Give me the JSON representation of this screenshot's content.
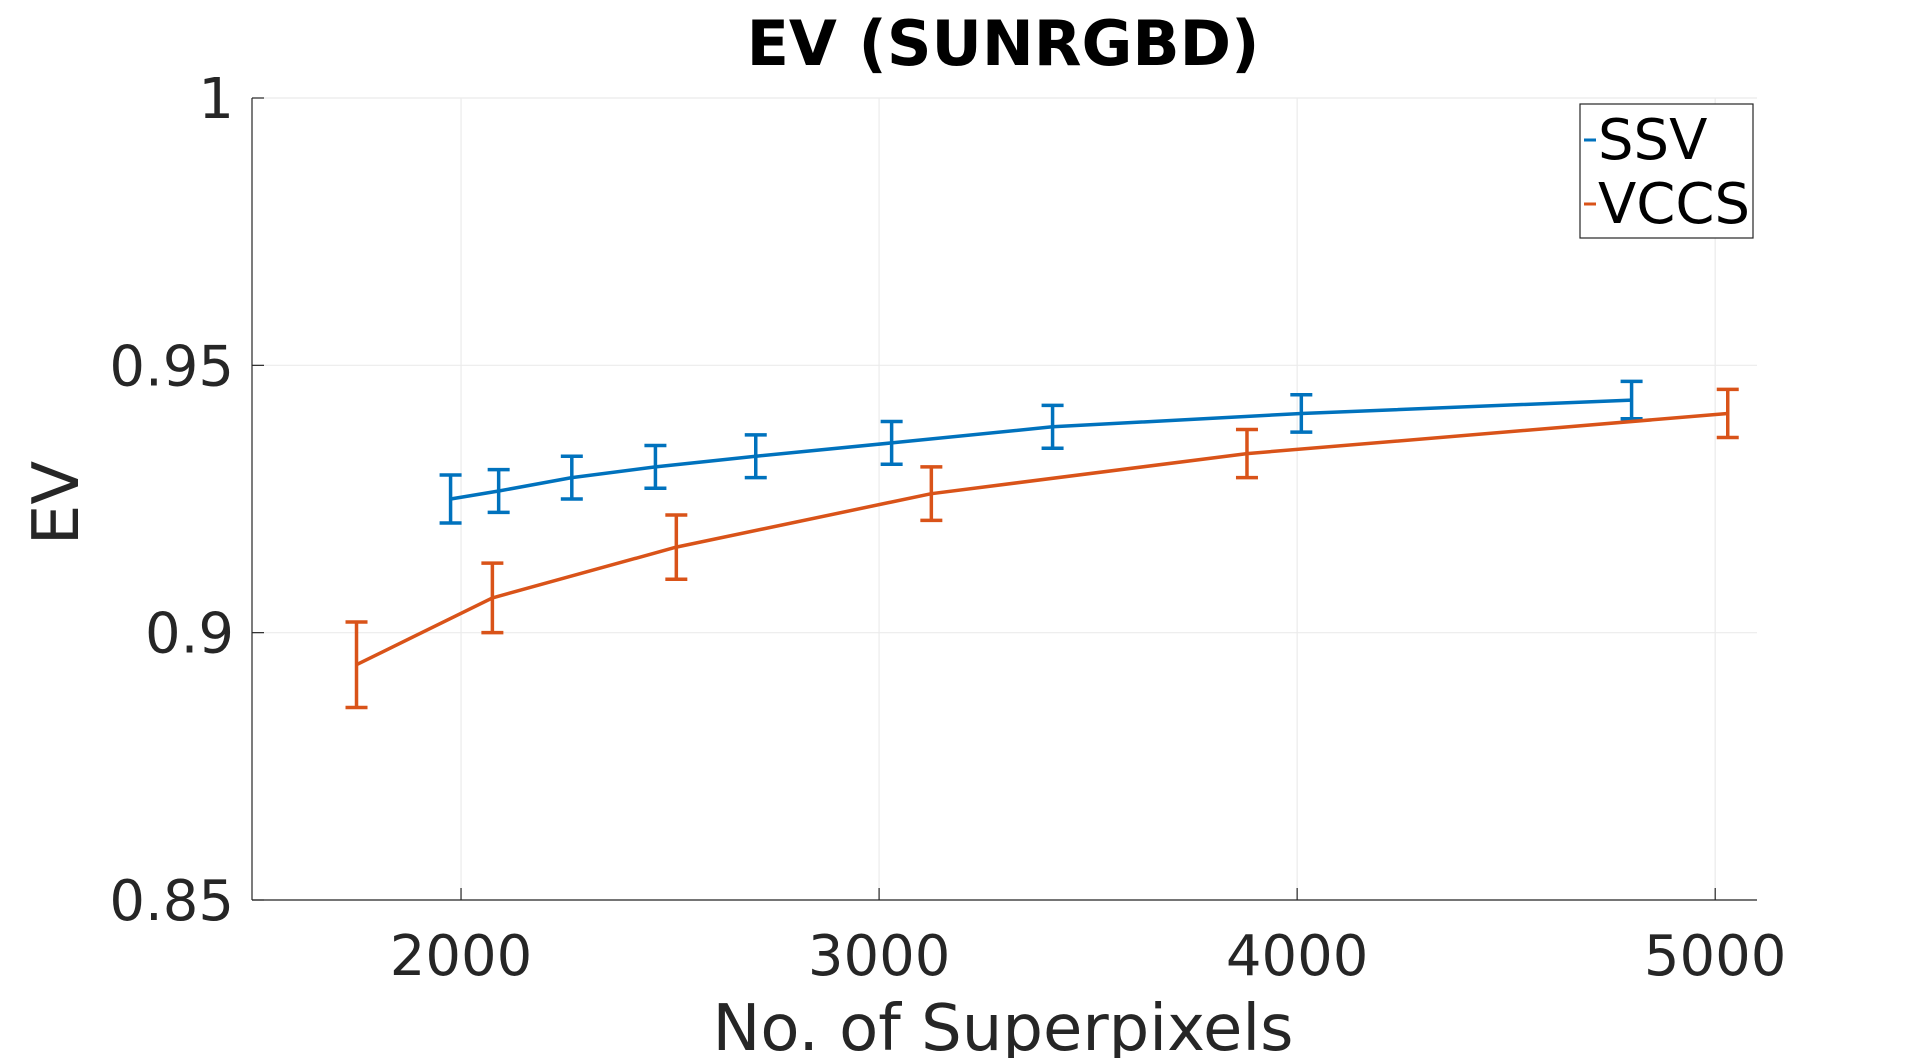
{
  "chart_data": {
    "type": "line",
    "title": "EV (SUNRGBD)",
    "xlabel": "No. of Superpixels",
    "ylabel": "EV",
    "xlim": [
      1500,
      5100
    ],
    "ylim": [
      0.85,
      1.0
    ],
    "xticks": [
      2000,
      3000,
      4000,
      5000
    ],
    "xtick_labels": [
      "2000",
      "3000",
      "4000",
      "5000"
    ],
    "yticks": [
      0.85,
      0.9,
      0.95,
      1.0
    ],
    "ytick_labels": [
      "0.85",
      "0.9",
      "0.95",
      "1"
    ],
    "grid": true,
    "legend_position": "top-right",
    "series": [
      {
        "name": "SSV",
        "color": "#0072bd",
        "x": [
          1975,
          2090,
          2265,
          2465,
          2705,
          3030,
          3415,
          4010,
          4800
        ],
        "y": [
          0.925,
          0.9265,
          0.929,
          0.931,
          0.933,
          0.9355,
          0.9385,
          0.941,
          0.9435
        ],
        "err": [
          0.0045,
          0.004,
          0.004,
          0.004,
          0.004,
          0.004,
          0.004,
          0.0035,
          0.0035
        ]
      },
      {
        "name": "VCCS",
        "color": "#d95319",
        "x": [
          1750,
          2075,
          2515,
          3125,
          3880,
          5030
        ],
        "y": [
          0.894,
          0.9065,
          0.916,
          0.926,
          0.9335,
          0.941
        ],
        "err": [
          0.008,
          0.0065,
          0.006,
          0.005,
          0.0045,
          0.0045
        ]
      }
    ]
  }
}
